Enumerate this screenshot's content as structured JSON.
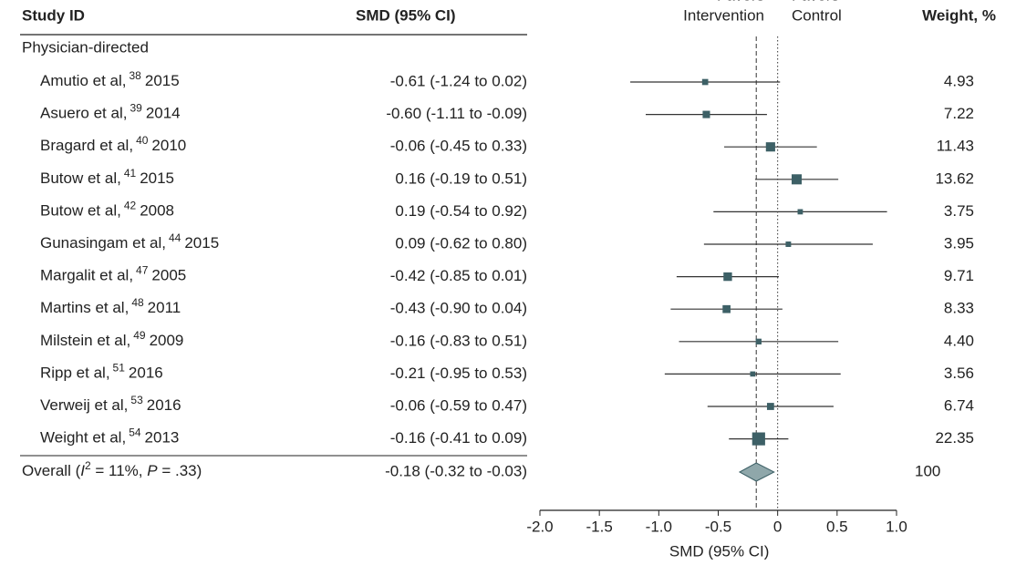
{
  "chart_data": {
    "type": "forest",
    "headers": {
      "study": "Study ID",
      "ci": "SMD (95% CI)",
      "weight": "Weight, %",
      "favors_left": [
        "Favors",
        "Intervention"
      ],
      "favors_right": [
        "Favors",
        "Control"
      ]
    },
    "group": "Physician-directed",
    "studies": [
      {
        "author": "Amutio et al,",
        "ref": "38",
        "year": "2015",
        "value": -0.61,
        "lo": -1.24,
        "hi": 0.02,
        "ci_label": "-0.61 (-1.24 to 0.02)",
        "weight": 4.93
      },
      {
        "author": "Asuero et al,",
        "ref": "39",
        "year": "2014",
        "value": -0.6,
        "lo": -1.11,
        "hi": -0.09,
        "ci_label": "-0.60 (-1.11 to -0.09)",
        "weight": 7.22
      },
      {
        "author": "Bragard et al,",
        "ref": "40",
        "year": "2010",
        "value": -0.06,
        "lo": -0.45,
        "hi": 0.33,
        "ci_label": "-0.06 (-0.45 to 0.33)",
        "weight": 11.43
      },
      {
        "author": "Butow et al,",
        "ref": "41",
        "year": "2015",
        "value": 0.16,
        "lo": -0.19,
        "hi": 0.51,
        "ci_label": "0.16 (-0.19 to 0.51)",
        "weight": 13.62
      },
      {
        "author": "Butow et al,",
        "ref": "42",
        "year": "2008",
        "value": 0.19,
        "lo": -0.54,
        "hi": 0.92,
        "ci_label": "0.19 (-0.54 to 0.92)",
        "weight": 3.75
      },
      {
        "author": "Gunasingam et al,",
        "ref": "44",
        "year": "2015",
        "value": 0.09,
        "lo": -0.62,
        "hi": 0.8,
        "ci_label": "0.09 (-0.62 to 0.80)",
        "weight": 3.95
      },
      {
        "author": "Margalit et al,",
        "ref": "47",
        "year": "2005",
        "value": -0.42,
        "lo": -0.85,
        "hi": 0.01,
        "ci_label": "-0.42 (-0.85 to 0.01)",
        "weight": 9.71
      },
      {
        "author": "Martins et al,",
        "ref": "48",
        "year": "2011",
        "value": -0.43,
        "lo": -0.9,
        "hi": 0.04,
        "ci_label": "-0.43 (-0.90 to 0.04)",
        "weight": 8.33
      },
      {
        "author": "Milstein et al,",
        "ref": "49",
        "year": "2009",
        "value": -0.16,
        "lo": -0.83,
        "hi": 0.51,
        "ci_label": "-0.16 (-0.83 to 0.51)",
        "weight": 4.4,
        "weight_label": "4.40"
      },
      {
        "author": "Ripp et al,",
        "ref": "51",
        "year": "2016",
        "value": -0.21,
        "lo": -0.95,
        "hi": 0.53,
        "ci_label": "-0.21 (-0.95 to 0.53)",
        "weight": 3.56
      },
      {
        "author": "Verweij et al,",
        "ref": "53",
        "year": "2016",
        "value": -0.06,
        "lo": -0.59,
        "hi": 0.47,
        "ci_label": "-0.06 (-0.59 to 0.47)",
        "weight": 6.74
      },
      {
        "author": "Weight et al,",
        "ref": "54",
        "year": "2013",
        "value": -0.16,
        "lo": -0.41,
        "hi": 0.09,
        "ci_label": "-0.16 (-0.41 to 0.09)",
        "weight": 22.35
      }
    ],
    "overall": {
      "label_parts": [
        {
          "text": "Overall ("
        },
        {
          "text": "I",
          "italic": true
        },
        {
          "text": "2",
          "sup": true
        },
        {
          "text": " = 11%, "
        },
        {
          "text": "P",
          "italic": true
        },
        {
          "text": " = .33)"
        }
      ],
      "value": -0.18,
      "lo": -0.32,
      "hi": -0.03,
      "ci_label": "-0.18 (-0.32 to -0.03)",
      "weight": 100
    },
    "xlim": [
      -2,
      1
    ],
    "xticks": [
      {
        "value": -2,
        "label": "-2.0"
      },
      {
        "value": -1.5,
        "label": "-1.5"
      },
      {
        "value": -1,
        "label": "-1.0"
      },
      {
        "value": -0.5,
        "label": "-0.5"
      },
      0,
      {
        "value": 0.5,
        "label": "0.5"
      },
      {
        "value": 1,
        "label": "1.0"
      }
    ],
    "xlabel": "SMD (95% CI)",
    "color": "#3d6066",
    "diamond_color": "#8fa7aa"
  }
}
